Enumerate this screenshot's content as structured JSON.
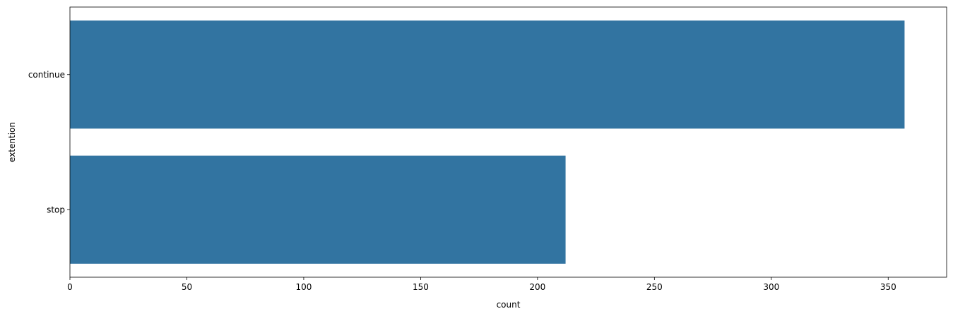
{
  "chart_data": {
    "type": "bar",
    "orientation": "horizontal",
    "categories": [
      "continue",
      "stop"
    ],
    "values": [
      357,
      212
    ],
    "title": "",
    "xlabel": "count",
    "ylabel": "extention",
    "xlim": [
      0,
      375
    ],
    "xticks": [
      0,
      50,
      100,
      150,
      200,
      250,
      300,
      350
    ],
    "bar_color": "#3274a1",
    "grid": false,
    "legend": "none"
  }
}
